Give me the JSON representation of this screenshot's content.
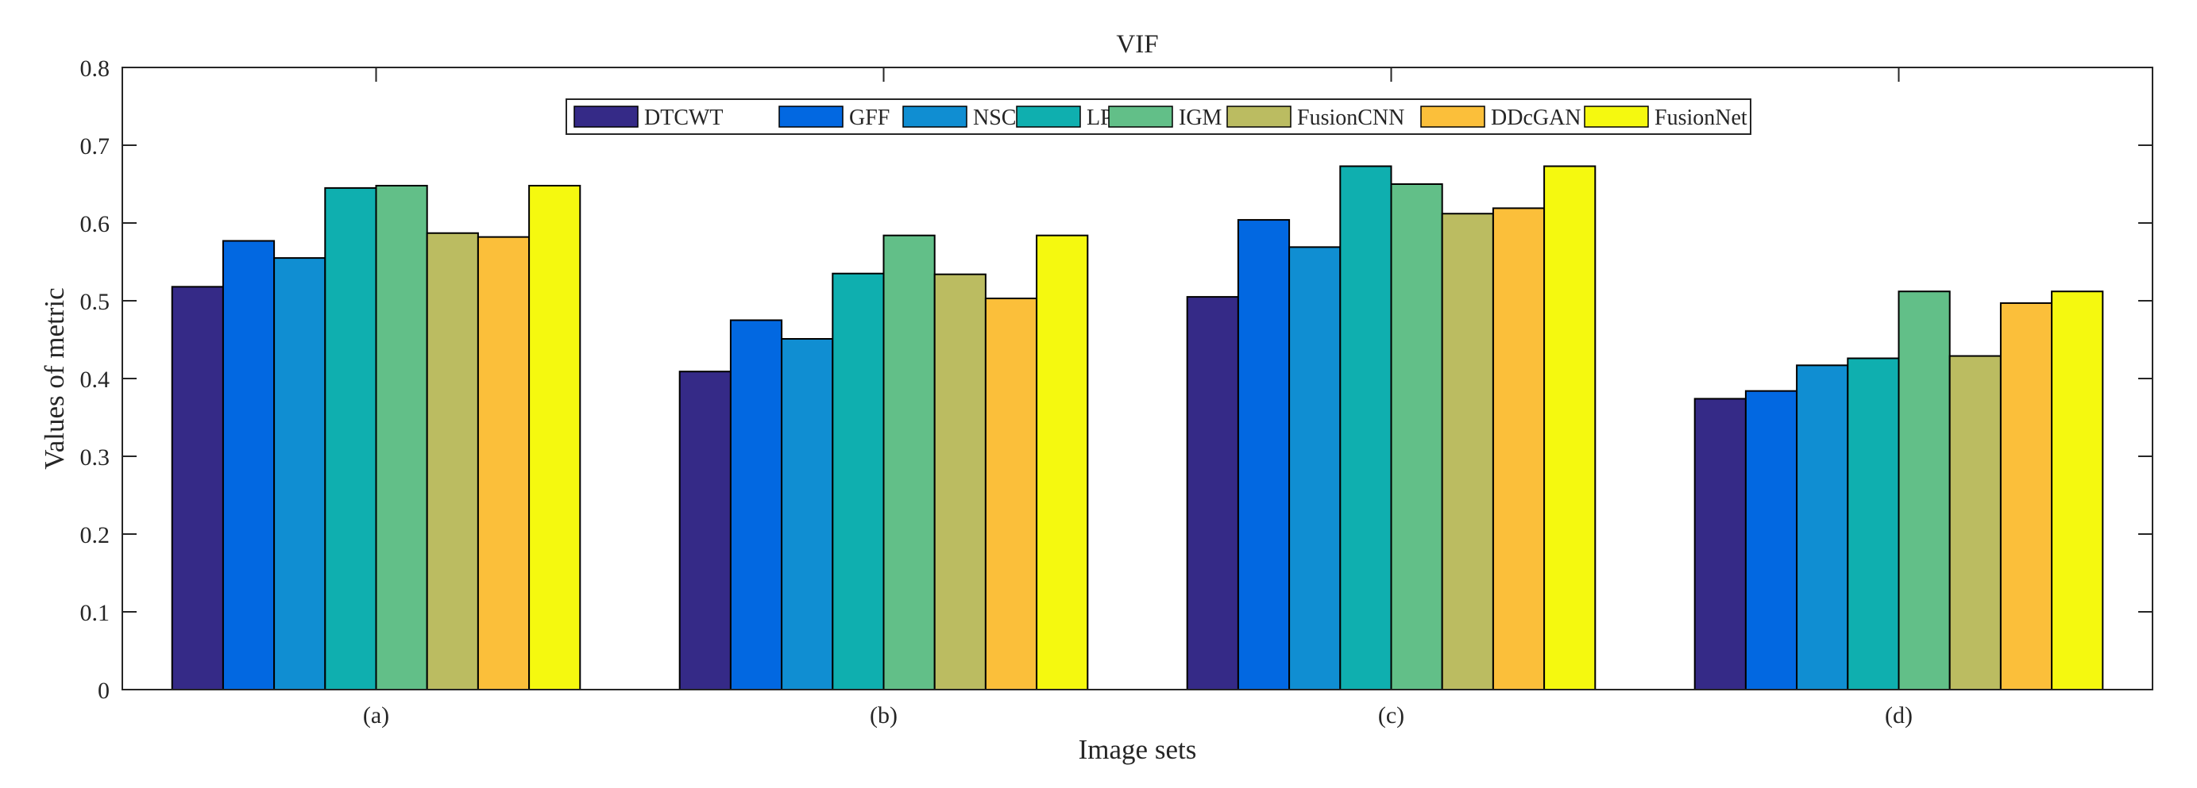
{
  "chart_data": {
    "type": "bar",
    "title": "VIF",
    "xlabel": "Image sets",
    "ylabel": "Values of metric",
    "ylim": [
      0,
      0.8
    ],
    "yticks": [
      "0",
      "0.1",
      "0.2",
      "0.3",
      "0.4",
      "0.5",
      "0.6",
      "0.7",
      "0.8"
    ],
    "categories": [
      "(a)",
      "(b)",
      "(c)",
      "(d)"
    ],
    "legend_position": "top-center",
    "series": [
      {
        "name": "DTCWT",
        "color": "#352a87",
        "values": [
          0.518,
          0.409,
          0.505,
          0.374
        ]
      },
      {
        "name": "GFF",
        "color": "#0268e1",
        "values": [
          0.577,
          0.475,
          0.604,
          0.384
        ]
      },
      {
        "name": "NSCT",
        "color": "#108ed2",
        "values": [
          0.555,
          0.451,
          0.569,
          0.417
        ]
      },
      {
        "name": "LPSR",
        "color": "#0fafaf",
        "values": [
          0.645,
          0.535,
          0.673,
          0.426
        ]
      },
      {
        "name": "IGM",
        "color": "#62bf88",
        "values": [
          0.648,
          0.584,
          0.65,
          0.512
        ]
      },
      {
        "name": "FusionCNN",
        "color": "#bbbc61",
        "values": [
          0.587,
          0.534,
          0.612,
          0.429
        ]
      },
      {
        "name": "DDcGAN",
        "color": "#fbbf3a",
        "values": [
          0.582,
          0.503,
          0.619,
          0.497
        ]
      },
      {
        "name": "FusionNet",
        "color": "#f5f90f",
        "values": [
          0.648,
          0.584,
          0.673,
          0.512
        ]
      }
    ]
  }
}
